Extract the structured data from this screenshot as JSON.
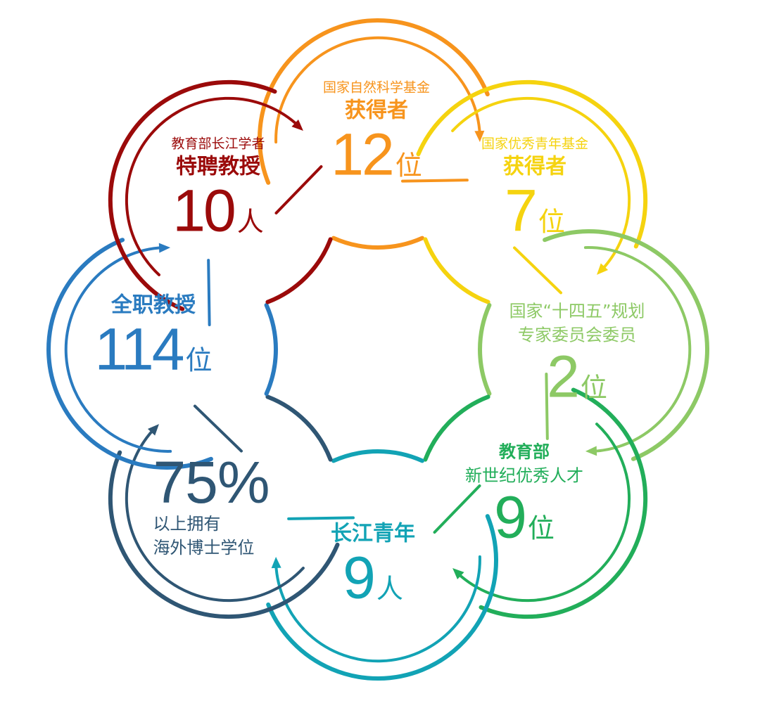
{
  "petals": [
    {
      "color": "#f7941d",
      "line1": "国家自然科学基金",
      "line2": "获得者",
      "number": "12",
      "unit": "位"
    },
    {
      "color": "#f5d30f",
      "line1": "国家优秀青年基金",
      "line2": "获得者",
      "number": "7",
      "unit": "位"
    },
    {
      "color": "#8dc965",
      "line1": "国家“十四五”规划",
      "line2": "专家委员会委员",
      "number": "2",
      "unit": "位"
    },
    {
      "color": "#22ae5a",
      "line1": "教育部",
      "line2": "新世纪优秀人才",
      "number": "9",
      "unit": "位"
    },
    {
      "color": "#12a3b5",
      "line1": "长江青年",
      "number": "9",
      "unit": "人"
    },
    {
      "color": "#2f5674",
      "number": "75%",
      "line1": "以上拥有",
      "line2": "海外博士学位"
    },
    {
      "color": "#2a7bc0",
      "line1": "全职教授",
      "number": "114",
      "unit": "位"
    },
    {
      "color": "#9b0a0a",
      "line1": "教育部长江学者",
      "line2": "特聘教授",
      "number": "10",
      "unit": "人"
    }
  ]
}
